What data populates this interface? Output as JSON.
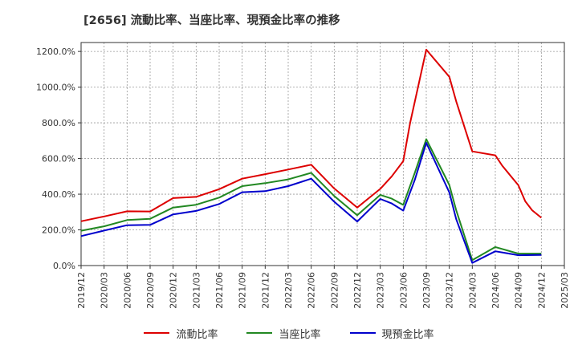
{
  "chart_data": {
    "type": "line",
    "title": "[2656]  流動比率、当座比率、現預金比率の推移",
    "xlabel": "",
    "ylabel": "",
    "ylim": [
      0,
      1250
    ],
    "yticks": [
      0,
      200,
      400,
      600,
      800,
      1000,
      1200
    ],
    "ytick_labels": [
      "0.0%",
      "200.0%",
      "400.0%",
      "600.0%",
      "800.0%",
      "1000.0%",
      "1200.0%"
    ],
    "xtick_labels": [
      "2019/12",
      "2020/03",
      "2020/06",
      "2020/09",
      "2020/12",
      "2021/03",
      "2021/06",
      "2021/09",
      "2021/12",
      "2022/03",
      "2022/06",
      "2022/09",
      "2022/12",
      "2023/03",
      "2023/06",
      "2023/09",
      "2023/12",
      "2024/03",
      "2024/06",
      "2024/09",
      "2024/12",
      "2025/03"
    ],
    "grid": true,
    "legend_position": "bottom",
    "series": [
      {
        "name": "流動比率",
        "color": "#dd0000",
        "points": [
          [
            0,
            248
          ],
          [
            1,
            275
          ],
          [
            2,
            304
          ],
          [
            3,
            303
          ],
          [
            4,
            378
          ],
          [
            5,
            385
          ],
          [
            6,
            428
          ],
          [
            7,
            487
          ],
          [
            8,
            512
          ],
          [
            9,
            538
          ],
          [
            10,
            565
          ],
          [
            11,
            432
          ],
          [
            12,
            325
          ],
          [
            13,
            430
          ],
          [
            13.5,
            500
          ],
          [
            14,
            585
          ],
          [
            14.3,
            800
          ],
          [
            15,
            1210
          ],
          [
            16,
            1058
          ],
          [
            16.3,
            920
          ],
          [
            17,
            640
          ],
          [
            18,
            618
          ],
          [
            18.3,
            560
          ],
          [
            19,
            450
          ],
          [
            19.3,
            360
          ],
          [
            19.6,
            310
          ],
          [
            20,
            268
          ]
        ]
      },
      {
        "name": "当座比率",
        "color": "#228822",
        "points": [
          [
            0,
            195
          ],
          [
            1,
            220
          ],
          [
            2,
            255
          ],
          [
            3,
            262
          ],
          [
            4,
            325
          ],
          [
            5,
            341
          ],
          [
            6,
            381
          ],
          [
            7,
            445
          ],
          [
            8,
            462
          ],
          [
            9,
            483
          ],
          [
            10,
            520
          ],
          [
            11,
            390
          ],
          [
            12,
            282
          ],
          [
            13,
            396
          ],
          [
            13.5,
            375
          ],
          [
            14,
            340
          ],
          [
            14.5,
            520
          ],
          [
            15,
            708
          ],
          [
            16,
            452
          ],
          [
            16.3,
            310
          ],
          [
            17,
            30
          ],
          [
            18,
            104
          ],
          [
            19,
            67
          ],
          [
            20,
            67
          ]
        ]
      },
      {
        "name": "現預金比率",
        "color": "#0000cc",
        "points": [
          [
            0,
            165
          ],
          [
            1,
            196
          ],
          [
            2,
            226
          ],
          [
            3,
            228
          ],
          [
            4,
            287
          ],
          [
            5,
            306
          ],
          [
            6,
            345
          ],
          [
            7,
            411
          ],
          [
            8,
            417
          ],
          [
            9,
            445
          ],
          [
            10,
            487
          ],
          [
            11,
            358
          ],
          [
            12,
            247
          ],
          [
            13,
            373
          ],
          [
            13.5,
            348
          ],
          [
            14,
            308
          ],
          [
            14.5,
            480
          ],
          [
            15,
            688
          ],
          [
            16,
            410
          ],
          [
            16.3,
            260
          ],
          [
            17,
            15
          ],
          [
            18,
            80
          ],
          [
            19,
            58
          ],
          [
            20,
            60
          ]
        ]
      }
    ]
  }
}
